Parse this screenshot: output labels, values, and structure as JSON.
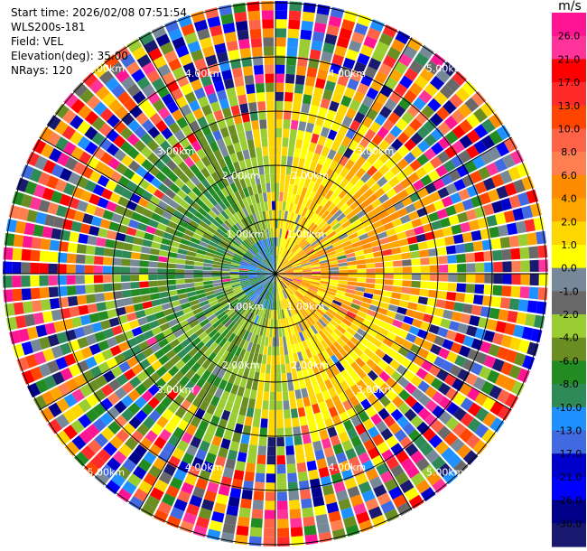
{
  "header": {
    "start_time": "Start time: 2026/02/08 07:51:54",
    "instrument": "WLS200s-181",
    "field": "Field: VEL",
    "elevation": "Elevation(deg): 35.00",
    "nrays": "NRays: 120"
  },
  "colorbar": {
    "unit": "m/s",
    "ticks": [
      "26.0",
      "21.0",
      "17.0",
      "13.0",
      "10.0",
      "8.0",
      "6.0",
      "4.0",
      "2.0",
      "1.0",
      "0.0",
      "-1.0",
      "-2.0",
      "-4.0",
      "-6.0",
      "-8.0",
      "-10.0",
      "-13.0",
      "-17.0",
      "-21.0",
      "-26.0",
      "-30.0"
    ],
    "colors": [
      "#ff1493",
      "#ff3399",
      "#ff0000",
      "#ff2b2b",
      "#ff4500",
      "#ff6347",
      "#ff7f50",
      "#ff8c00",
      "#ffa500",
      "#ffd700",
      "#ffff00",
      "#778899",
      "#696969",
      "#9acd32",
      "#6b8e23",
      "#228b22",
      "#2e8b57",
      "#1e90ff",
      "#4169e1",
      "#0000cd",
      "#0000ff",
      "#00008b",
      "#191970"
    ]
  },
  "chart_data": {
    "type": "ppi",
    "field": "VEL",
    "nrays": 120,
    "elevation_deg": 35.0,
    "range_rings": [
      {
        "label": "1.00km"
      },
      {
        "label": "2.00km"
      },
      {
        "label": "3.00km"
      },
      {
        "label": "4.00km"
      },
      {
        "label": "5.00km"
      }
    ],
    "vmin": -30,
    "vmax": 26
  }
}
